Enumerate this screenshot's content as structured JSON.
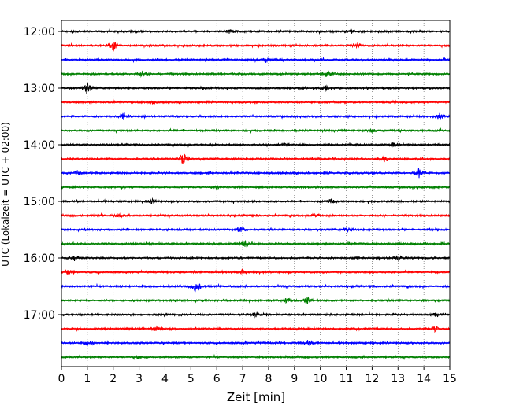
{
  "chart_data": {
    "type": "line",
    "title": "",
    "xlabel": "Zeit  [min]",
    "ylabel": "UTC (Lokalzeit = UTC + 02:00)",
    "xlim": [
      0,
      15
    ],
    "x_ticks": [
      "0",
      "1",
      "2",
      "3",
      "4",
      "5",
      "6",
      "7",
      "8",
      "9",
      "10",
      "11",
      "12",
      "13",
      "14",
      "15"
    ],
    "y_ticks": [
      {
        "label": "12:00",
        "trace": 0
      },
      {
        "label": "13:00",
        "trace": 4
      },
      {
        "label": "14:00",
        "trace": 8
      },
      {
        "label": "15:00",
        "trace": 12
      },
      {
        "label": "16:00",
        "trace": 16
      },
      {
        "label": "17:00",
        "trace": 20
      }
    ],
    "grid": {
      "x": true,
      "y": false
    },
    "trace_interval_minutes": 15,
    "trace_colors": [
      "#000000",
      "#ff0000",
      "#0000ff",
      "#008000"
    ],
    "traces": [
      {
        "start": "12:00",
        "events": [
          {
            "t": 6.5,
            "a": 3
          },
          {
            "t": 11.2,
            "a": 3
          }
        ]
      },
      {
        "start": "12:15",
        "events": [
          {
            "t": 2.0,
            "a": 7
          },
          {
            "t": 11.4,
            "a": 4
          }
        ]
      },
      {
        "start": "12:30",
        "events": [
          {
            "t": 7.9,
            "a": 3
          }
        ]
      },
      {
        "start": "12:45",
        "events": [
          {
            "t": 3.1,
            "a": 3
          },
          {
            "t": 10.3,
            "a": 5
          }
        ]
      },
      {
        "start": "13:00",
        "events": [
          {
            "t": 1.0,
            "a": 8
          },
          {
            "t": 10.2,
            "a": 3
          }
        ]
      },
      {
        "start": "13:15",
        "events": [
          {
            "t": 3.5,
            "a": 2
          }
        ]
      },
      {
        "start": "13:30",
        "events": [
          {
            "t": 2.4,
            "a": 4
          },
          {
            "t": 14.6,
            "a": 4
          }
        ]
      },
      {
        "start": "13:45",
        "events": [
          {
            "t": 12.0,
            "a": 3
          }
        ]
      },
      {
        "start": "14:00",
        "events": [
          {
            "t": 8.5,
            "a": 3
          },
          {
            "t": 12.8,
            "a": 3
          }
        ]
      },
      {
        "start": "14:15",
        "events": [
          {
            "t": 4.7,
            "a": 11
          },
          {
            "t": 12.5,
            "a": 4
          }
        ]
      },
      {
        "start": "14:30",
        "events": [
          {
            "t": 0.6,
            "a": 3
          },
          {
            "t": 13.8,
            "a": 7
          }
        ]
      },
      {
        "start": "14:45",
        "events": [
          {
            "t": 6.0,
            "a": 2
          }
        ]
      },
      {
        "start": "15:00",
        "events": [
          {
            "t": 3.5,
            "a": 3
          },
          {
            "t": 10.4,
            "a": 3
          }
        ]
      },
      {
        "start": "15:15",
        "events": [
          {
            "t": 2.2,
            "a": 3
          },
          {
            "t": 9.8,
            "a": 3
          }
        ]
      },
      {
        "start": "15:30",
        "events": [
          {
            "t": 6.9,
            "a": 6
          },
          {
            "t": 11.0,
            "a": 3
          }
        ]
      },
      {
        "start": "15:45",
        "events": [
          {
            "t": 7.1,
            "a": 4
          }
        ]
      },
      {
        "start": "16:00",
        "events": [
          {
            "t": 0.5,
            "a": 3
          },
          {
            "t": 13.0,
            "a": 3
          }
        ]
      },
      {
        "start": "16:15",
        "events": [
          {
            "t": 0.3,
            "a": 5
          },
          {
            "t": 7.0,
            "a": 3
          }
        ]
      },
      {
        "start": "16:30",
        "events": [
          {
            "t": 5.2,
            "a": 9
          }
        ]
      },
      {
        "start": "16:45",
        "events": [
          {
            "t": 8.7,
            "a": 3
          },
          {
            "t": 9.5,
            "a": 4
          }
        ]
      },
      {
        "start": "17:00",
        "events": [
          {
            "t": 7.5,
            "a": 4
          },
          {
            "t": 14.5,
            "a": 3
          }
        ]
      },
      {
        "start": "17:15",
        "events": [
          {
            "t": 3.7,
            "a": 4
          },
          {
            "t": 14.4,
            "a": 4
          }
        ]
      },
      {
        "start": "17:30",
        "events": [
          {
            "t": 9.5,
            "a": 3
          },
          {
            "t": 1.1,
            "a": 2
          }
        ]
      },
      {
        "start": "17:45",
        "events": [
          {
            "t": 3.0,
            "a": 2
          }
        ]
      }
    ]
  }
}
